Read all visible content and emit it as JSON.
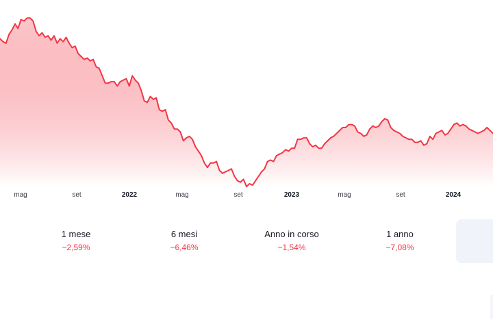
{
  "chart_data": {
    "type": "area",
    "x_labels": [
      {
        "text": "mag",
        "bold": false
      },
      {
        "text": "set",
        "bold": false
      },
      {
        "text": "2022",
        "bold": true
      },
      {
        "text": "mag",
        "bold": false
      },
      {
        "text": "set",
        "bold": false
      },
      {
        "text": "2023",
        "bold": true
      },
      {
        "text": "mag",
        "bold": false
      },
      {
        "text": "set",
        "bold": false
      },
      {
        "text": "2024",
        "bold": true
      }
    ],
    "series": [
      {
        "values": [
          94,
          92,
          91,
          97,
          100,
          104,
          101,
          107,
          106,
          108,
          108,
          106,
          99,
          96,
          98,
          95,
          96,
          93,
          96,
          91,
          94,
          92,
          95,
          91,
          88,
          89,
          84,
          82,
          80,
          81,
          79,
          80,
          75,
          74,
          69,
          64,
          64,
          65,
          65,
          62,
          65,
          66,
          67,
          62,
          69,
          66,
          64,
          59,
          52,
          51,
          55,
          53,
          54,
          46,
          45,
          46,
          39,
          37,
          33,
          33,
          31,
          25,
          27,
          28,
          26,
          21,
          18,
          15,
          10,
          7,
          10,
          10,
          11,
          5,
          3,
          4,
          5,
          6,
          1,
          -2,
          -3,
          -1,
          -6,
          -4,
          -5,
          -2,
          1,
          4,
          6,
          11,
          12,
          11,
          15,
          16,
          17,
          19,
          18,
          20,
          20,
          26,
          26,
          27,
          27,
          23,
          21,
          22,
          20,
          20,
          23,
          25,
          27,
          28,
          30,
          32,
          34,
          34,
          36,
          36,
          35,
          31,
          30,
          28,
          29,
          33,
          35,
          34,
          35,
          38,
          40,
          39,
          34,
          32,
          31,
          30,
          28,
          27,
          26,
          26,
          24,
          24,
          25,
          22,
          23,
          28,
          26,
          30,
          31,
          32,
          29,
          30,
          33,
          36,
          37,
          35,
          36,
          35,
          33,
          32,
          31,
          30,
          31,
          32,
          34,
          32,
          30
        ]
      }
    ],
    "line_color": "#f23645",
    "fill_color_top": "#f23645",
    "fill_color_bottom": "#ffffff",
    "grid": false,
    "legend": "none"
  },
  "performance": [
    {
      "label": "1 mese",
      "value": "−2,59%"
    },
    {
      "label": "6 mesi",
      "value": "−6,46%"
    },
    {
      "label": "Anno in corso",
      "value": "−1,54%"
    },
    {
      "label": "1 anno",
      "value": "−7,08%"
    },
    {
      "label": "",
      "value": ""
    }
  ],
  "colors": {
    "negative": "#f23645",
    "selected_bg": "#f0f3fa",
    "text": "#131722"
  }
}
